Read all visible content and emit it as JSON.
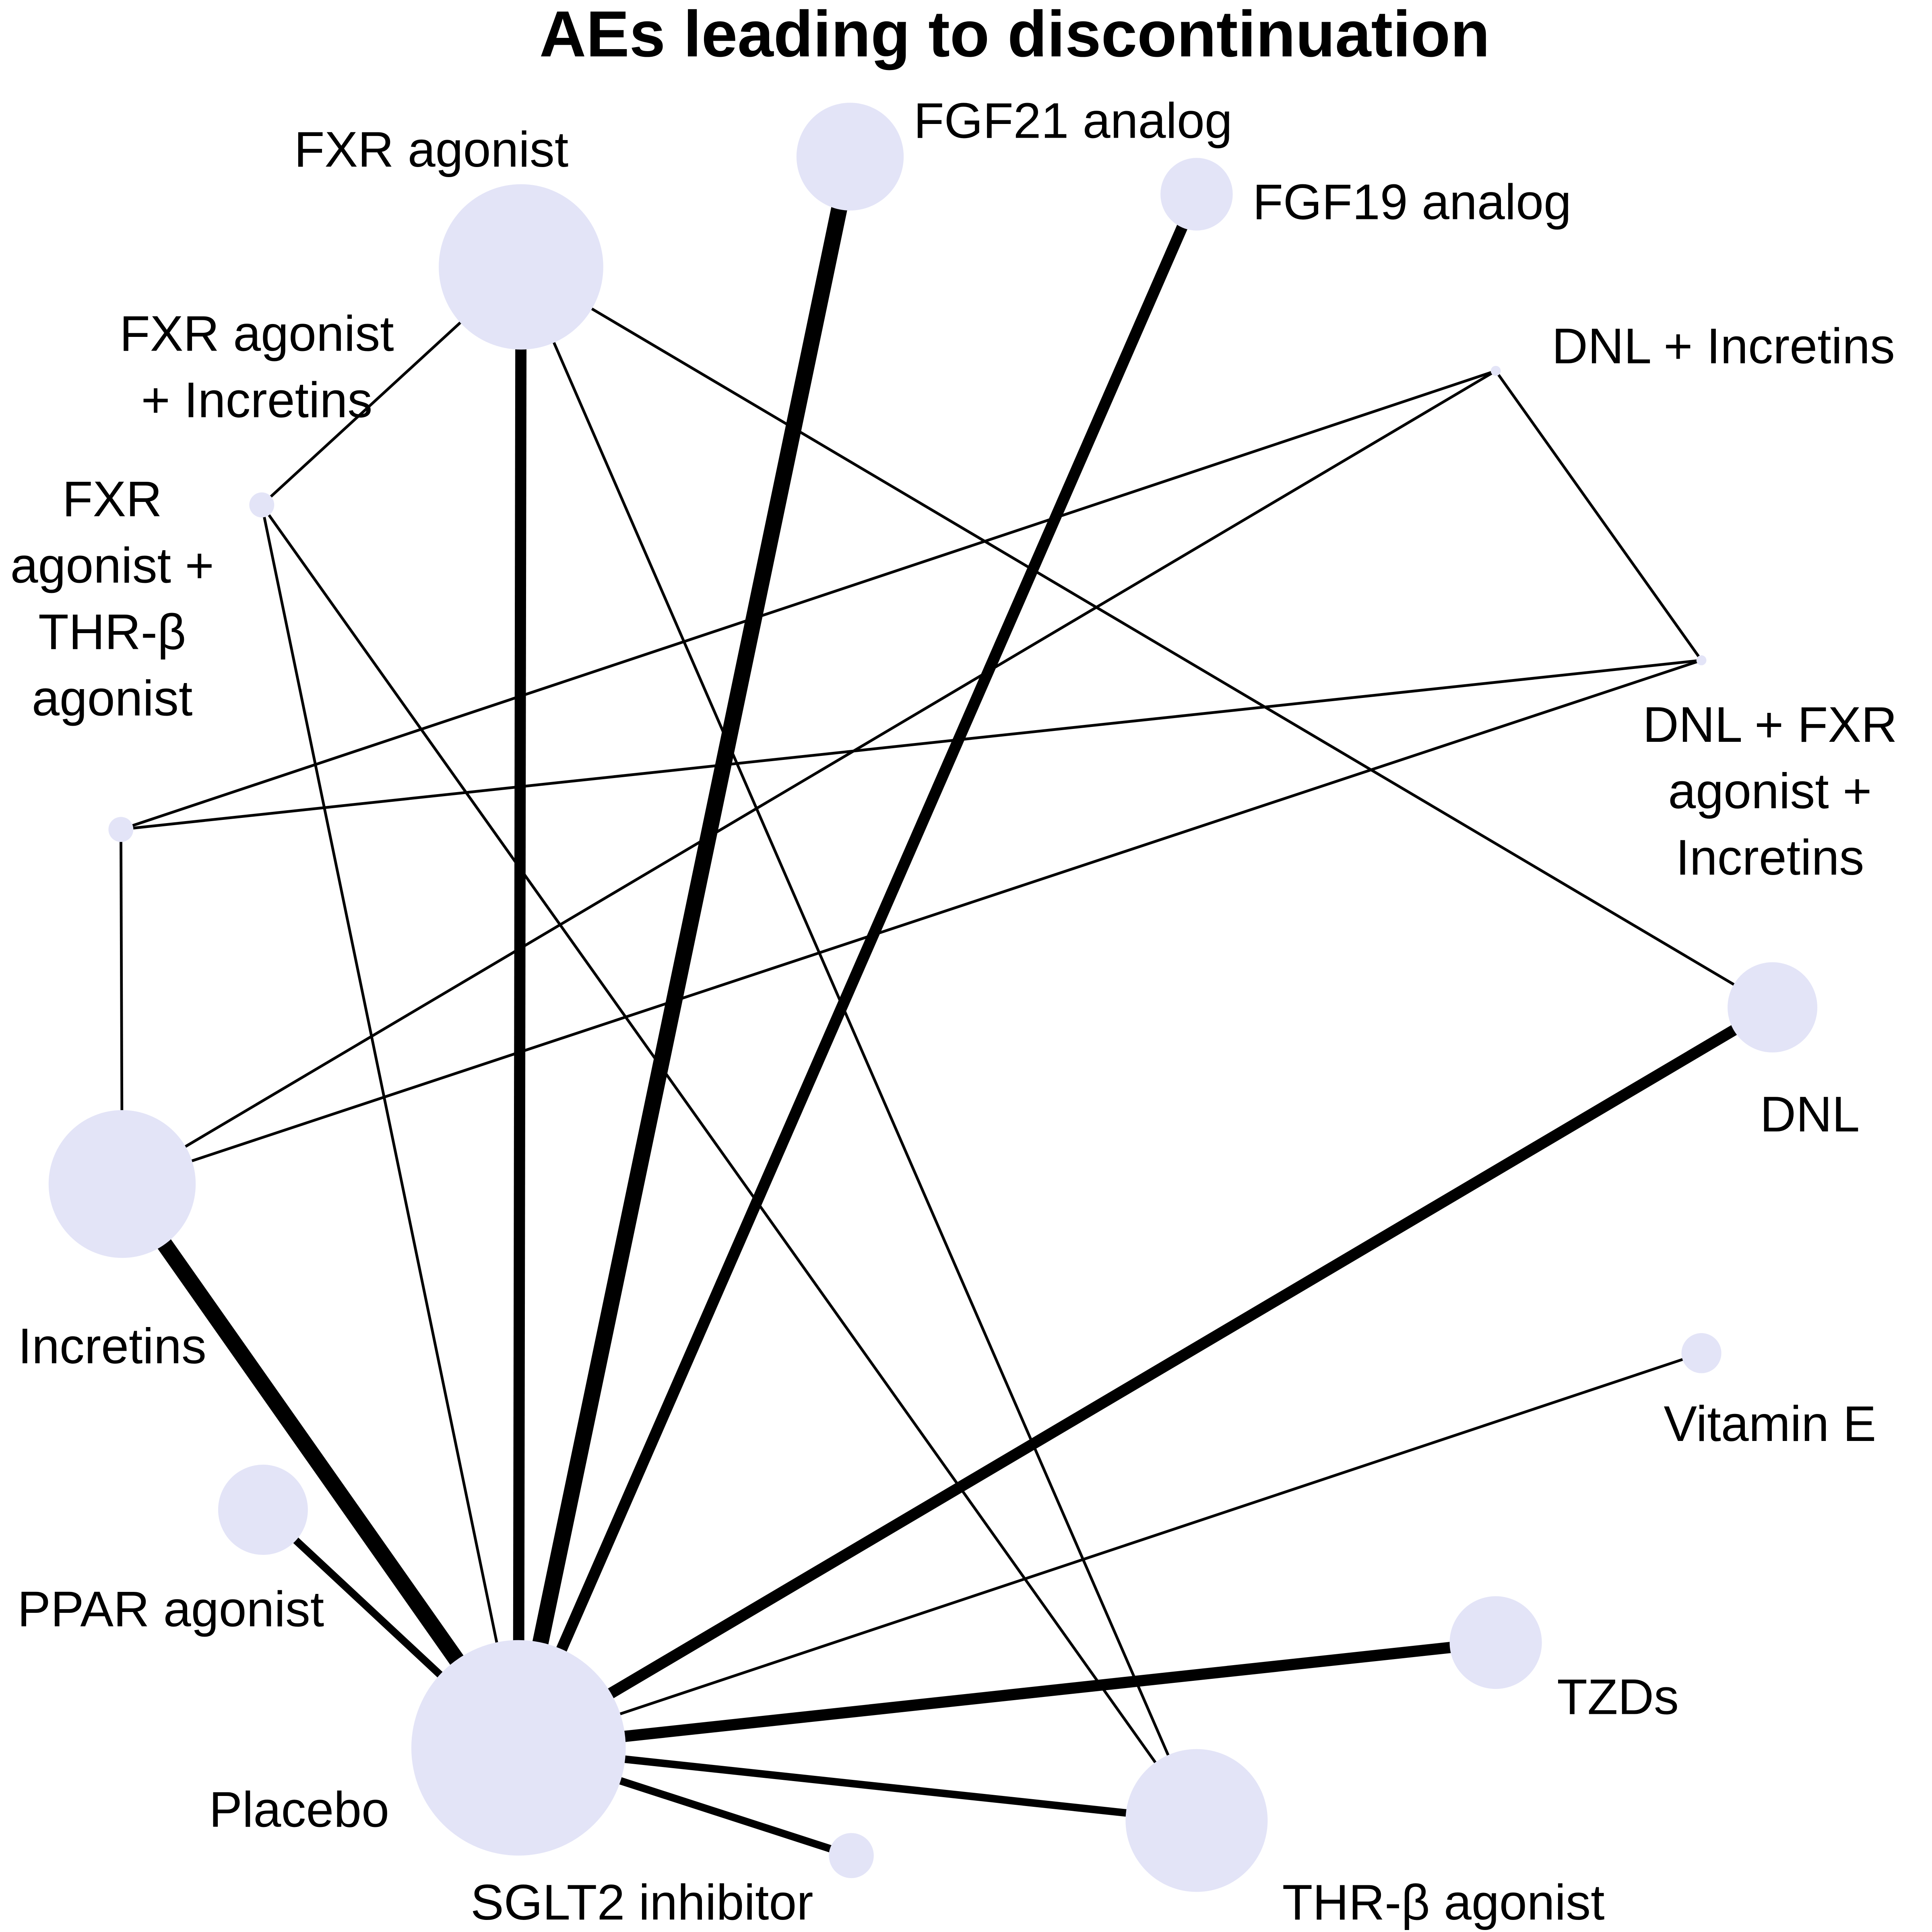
{
  "title": "AEs leading to discontinuation",
  "colors": {
    "node_fill": "#e3e4f7",
    "edge": "#000000",
    "background": "#ffffff"
  },
  "nodes": [
    {
      "id": "fxr",
      "label_lines": [
        "FXR agonist"
      ]
    },
    {
      "id": "fgf21",
      "label_lines": [
        "FGF21 analog"
      ]
    },
    {
      "id": "fgf19",
      "label_lines": [
        "FGF19 analog"
      ]
    },
    {
      "id": "dnl_incretins",
      "label_lines": [
        "DNL + Incretins"
      ]
    },
    {
      "id": "dnl_fxr_incretins",
      "label_lines": [
        "DNL + FXR",
        "agonist +",
        "Incretins"
      ]
    },
    {
      "id": "dnl",
      "label_lines": [
        "DNL"
      ]
    },
    {
      "id": "vitamin_e",
      "label_lines": [
        "Vitamin E"
      ]
    },
    {
      "id": "tzds",
      "label_lines": [
        "TZDs"
      ]
    },
    {
      "id": "thr_b",
      "label_lines": [
        "THR-β agonist"
      ]
    },
    {
      "id": "sglt2",
      "label_lines": [
        "SGLT2 inhibitor"
      ]
    },
    {
      "id": "placebo",
      "label_lines": [
        "Placebo"
      ]
    },
    {
      "id": "ppar",
      "label_lines": [
        "PPAR agonist"
      ]
    },
    {
      "id": "incretins",
      "label_lines": [
        "Incretins"
      ]
    },
    {
      "id": "fxr_thr_b",
      "label_lines": [
        "FXR",
        "agonist +",
        "THR-β",
        "agonist"
      ]
    },
    {
      "id": "fxr_incretins",
      "label_lines": [
        "FXR agonist",
        "+ Incretins"
      ]
    }
  ],
  "edges": [
    {
      "from": "placebo",
      "to": "fxr",
      "weight": "thick"
    },
    {
      "from": "placebo",
      "to": "fgf21",
      "weight": "very thick"
    },
    {
      "from": "placebo",
      "to": "fgf19",
      "weight": "thick"
    },
    {
      "from": "placebo",
      "to": "dnl",
      "weight": "thick"
    },
    {
      "from": "placebo",
      "to": "tzds",
      "weight": "thick"
    },
    {
      "from": "placebo",
      "to": "incretins",
      "weight": "very thick"
    },
    {
      "from": "placebo",
      "to": "ppar",
      "weight": "medium"
    },
    {
      "from": "placebo",
      "to": "thr_b",
      "weight": "medium"
    },
    {
      "from": "placebo",
      "to": "sglt2",
      "weight": "medium"
    },
    {
      "from": "placebo",
      "to": "vitamin_e",
      "weight": "thin"
    },
    {
      "from": "placebo",
      "to": "fxr_incretins",
      "weight": "thin"
    },
    {
      "from": "fxr",
      "to": "dnl",
      "weight": "thin"
    },
    {
      "from": "fxr",
      "to": "thr_b",
      "weight": "thin"
    },
    {
      "from": "fxr",
      "to": "fxr_incretins",
      "weight": "thin"
    },
    {
      "from": "fxr_thr_b",
      "to": "dnl_incretins",
      "weight": "thin"
    },
    {
      "from": "fxr_thr_b",
      "to": "dnl_fxr_incretins",
      "weight": "thin"
    },
    {
      "from": "fxr_thr_b",
      "to": "incretins",
      "weight": "thin"
    },
    {
      "from": "dnl_incretins",
      "to": "dnl_fxr_incretins",
      "weight": "thin"
    },
    {
      "from": "dnl_incretins",
      "to": "incretins",
      "weight": "thin"
    },
    {
      "from": "dnl_fxr_incretins",
      "to": "incretins",
      "weight": "thin"
    },
    {
      "from": "fxr_incretins",
      "to": "thr_b",
      "weight": "thin"
    }
  ]
}
